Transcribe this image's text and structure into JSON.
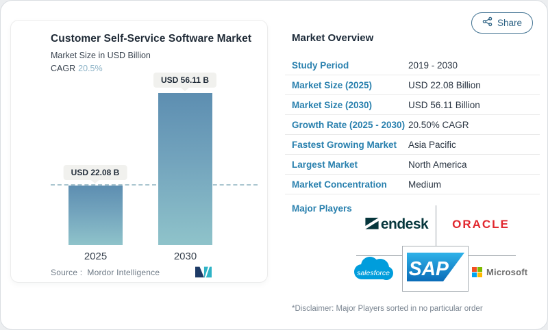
{
  "share": {
    "label": "Share"
  },
  "chart_card": {
    "title": "Customer Self-Service Software Market",
    "subtitle": "Market Size in USD Billion",
    "cagr_label": "CAGR",
    "cagr_value": "20.5%",
    "source_label": "Source :",
    "source_value": "Mordor Intelligence"
  },
  "chart_data": {
    "type": "bar",
    "categories": [
      "2025",
      "2030"
    ],
    "values": [
      22.08,
      56.11
    ],
    "bar_labels": [
      "USD 22.08 B",
      "USD 56.11 B"
    ],
    "title": "Customer Self-Service Software Market",
    "subtitle": "Market Size in USD Billion",
    "unit": "USD Billion",
    "cagr": "20.5%",
    "ylim": [
      0,
      60
    ],
    "grid": false,
    "dashed_reference_at": 22.08,
    "bar_gradient": [
      "#5d8eb1",
      "#8fc3ca"
    ]
  },
  "overview": {
    "heading": "Market Overview",
    "rows": [
      {
        "label": "Study Period",
        "value": "2019 - 2030"
      },
      {
        "label": "Market Size (2025)",
        "value": "USD 22.08 Billion"
      },
      {
        "label": "Market Size (2030)",
        "value": "USD 56.11 Billion"
      },
      {
        "label": "Growth Rate (2025 - 2030)",
        "value": "20.50% CAGR"
      },
      {
        "label": "Fastest Growing Market",
        "value": "Asia Pacific"
      },
      {
        "label": "Largest Market",
        "value": "North America"
      },
      {
        "label": "Market Concentration",
        "value": "Medium"
      }
    ],
    "major_players_label": "Major Players",
    "players": {
      "zendesk": "endesk",
      "oracle": "ORACLE",
      "salesforce": "salesforce",
      "sap": "SAP",
      "microsoft": "Microsoft"
    },
    "disclaimer": "*Disclaimer: Major Players sorted in no particular order"
  },
  "colors": {
    "accent_teal": "#2980ae",
    "cagr_value": "#8bb2c6",
    "bar_top": "#5d8eb1",
    "bar_bottom": "#8fc3ca",
    "dashed_line": "#a9c5cf",
    "zendesk": "#06363c",
    "oracle_red": "#e1272e",
    "salesforce_blue": "#009ddc",
    "sap_gradient_top": "#2fb2e9",
    "sap_gradient_bottom": "#0a6cb8",
    "microsoft_text": "#6d6d6d",
    "ms_red": "#f25022",
    "ms_green": "#7fba00",
    "ms_blue": "#00a4ef",
    "ms_yellow": "#ffb900",
    "share_border": "#3f7191"
  }
}
